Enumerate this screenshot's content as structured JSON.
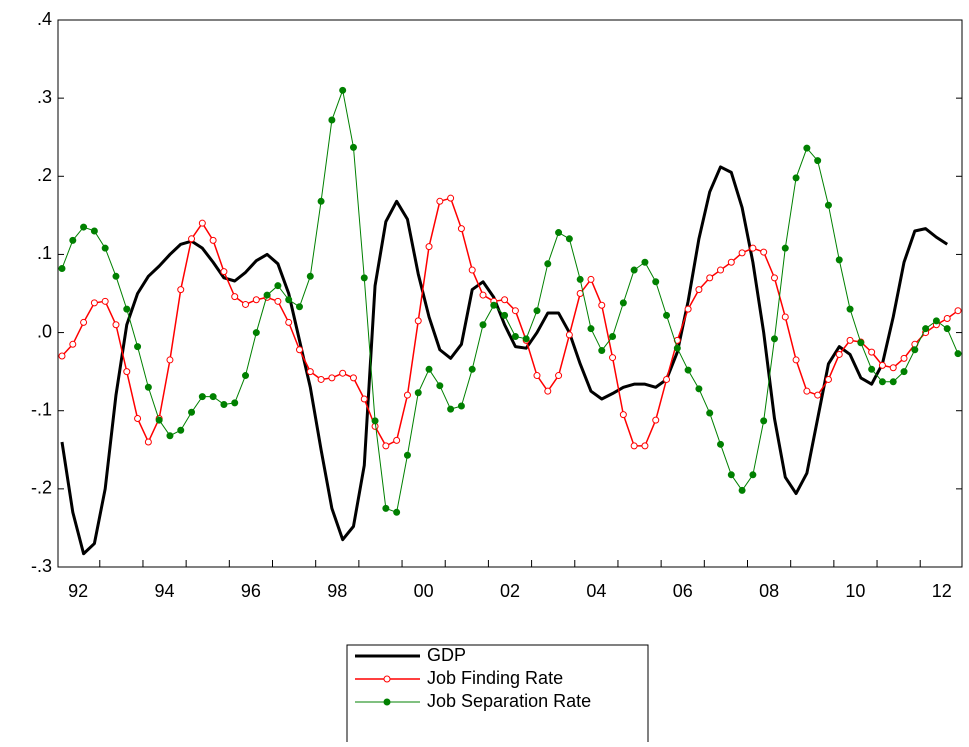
{
  "chart_data": {
    "type": "line",
    "categories": [
      null,
      "92",
      null,
      null,
      null,
      null,
      null,
      null,
      null,
      "94",
      null,
      null,
      null,
      null,
      null,
      null,
      null,
      "96",
      null,
      null,
      null,
      null,
      null,
      null,
      null,
      "98",
      null,
      null,
      null,
      null,
      null,
      null,
      null,
      "00",
      null,
      null,
      null,
      null,
      null,
      null,
      null,
      "02",
      null,
      null,
      null,
      null,
      null,
      null,
      null,
      "04",
      null,
      null,
      null,
      null,
      null,
      null,
      null,
      "06",
      null,
      null,
      null,
      null,
      null,
      null,
      null,
      "08",
      null,
      null,
      null,
      null,
      null,
      null,
      null,
      "10",
      null,
      null,
      null,
      null,
      null,
      null,
      null,
      "12",
      null,
      null
    ],
    "series": [
      {
        "name": "GDP",
        "color": "#000000",
        "values": [
          -0.14,
          -0.23,
          -0.283,
          -0.27,
          -0.2,
          -0.08,
          0.01,
          0.05,
          0.072,
          0.085,
          0.1,
          0.113,
          0.117,
          0.108,
          0.09,
          0.07,
          0.066,
          0.077,
          0.092,
          0.1,
          0.088,
          0.05,
          -0.01,
          -0.07,
          -0.15,
          -0.225,
          -0.265,
          -0.248,
          -0.17,
          0.06,
          0.142,
          0.168,
          0.145,
          0.075,
          0.02,
          -0.022,
          -0.033,
          -0.015,
          0.055,
          0.065,
          0.045,
          0.01,
          -0.018,
          -0.02,
          0.0,
          0.025,
          0.025,
          0.0,
          -0.04,
          -0.075,
          -0.085,
          -0.078,
          -0.07,
          -0.066,
          -0.066,
          -0.07,
          -0.06,
          -0.025,
          0.04,
          0.12,
          0.18,
          0.212,
          0.205,
          0.16,
          0.09,
          0.0,
          -0.11,
          -0.185,
          -0.206,
          -0.18,
          -0.11,
          -0.04,
          -0.018,
          -0.028,
          -0.058,
          -0.066,
          -0.04,
          0.02,
          0.09,
          0.13,
          0.133,
          0.122,
          0.113,
          null
        ]
      },
      {
        "name": "Job Finding Rate",
        "color": "#ff0000",
        "values": [
          -0.03,
          -0.015,
          0.013,
          0.038,
          0.04,
          0.01,
          -0.05,
          -0.11,
          -0.14,
          -0.11,
          -0.035,
          0.055,
          0.12,
          0.14,
          0.118,
          0.078,
          0.046,
          0.036,
          0.042,
          0.045,
          0.04,
          0.013,
          -0.022,
          -0.05,
          -0.06,
          -0.058,
          -0.052,
          -0.058,
          -0.085,
          -0.12,
          -0.145,
          -0.138,
          -0.08,
          0.015,
          0.11,
          0.168,
          0.172,
          0.133,
          0.08,
          0.048,
          0.04,
          0.042,
          0.028,
          -0.01,
          -0.055,
          -0.075,
          -0.055,
          -0.003,
          0.05,
          0.068,
          0.035,
          -0.032,
          -0.105,
          -0.145,
          -0.145,
          -0.112,
          -0.06,
          -0.01,
          0.03,
          0.055,
          0.07,
          0.08,
          0.09,
          0.102,
          0.108,
          0.103,
          0.07,
          0.02,
          -0.035,
          -0.075,
          -0.08,
          -0.06,
          -0.028,
          -0.01,
          -0.012,
          -0.025,
          -0.042,
          -0.045,
          -0.033,
          -0.015,
          0.0,
          0.01,
          0.018,
          0.028
        ]
      },
      {
        "name": "Job Separation Rate",
        "color": "#008000",
        "values": [
          0.082,
          0.118,
          0.135,
          0.13,
          0.108,
          0.072,
          0.03,
          -0.018,
          -0.07,
          -0.112,
          -0.132,
          -0.125,
          -0.102,
          -0.082,
          -0.082,
          -0.092,
          -0.09,
          -0.055,
          0.0,
          0.048,
          0.06,
          0.042,
          0.033,
          0.072,
          0.168,
          0.272,
          0.31,
          0.237,
          0.07,
          -0.113,
          -0.225,
          -0.23,
          -0.157,
          -0.077,
          -0.047,
          -0.068,
          -0.098,
          -0.094,
          -0.047,
          0.01,
          0.035,
          0.022,
          -0.005,
          -0.008,
          0.028,
          0.088,
          0.128,
          0.12,
          0.068,
          0.005,
          -0.023,
          -0.005,
          0.038,
          0.08,
          0.09,
          0.065,
          0.022,
          -0.02,
          -0.048,
          -0.072,
          -0.103,
          -0.143,
          -0.182,
          -0.202,
          -0.182,
          -0.113,
          -0.008,
          0.108,
          0.198,
          0.236,
          0.22,
          0.163,
          0.093,
          0.03,
          -0.013,
          -0.047,
          -0.063,
          -0.063,
          -0.05,
          -0.022,
          0.005,
          0.015,
          0.005,
          -0.027
        ]
      }
    ],
    "ylim": [
      -0.3,
      0.4
    ],
    "yticks": [
      {
        "value": -0.3,
        "label": "-.3"
      },
      {
        "value": -0.2,
        "label": "-.2"
      },
      {
        "value": -0.1,
        "label": "-.1"
      },
      {
        "value": 0.0,
        "label": ".0"
      },
      {
        "value": 0.1,
        "label": ".1"
      },
      {
        "value": 0.2,
        "label": ".2"
      },
      {
        "value": 0.3,
        "label": ".3"
      },
      {
        "value": 0.4,
        "label": ".4"
      }
    ]
  }
}
